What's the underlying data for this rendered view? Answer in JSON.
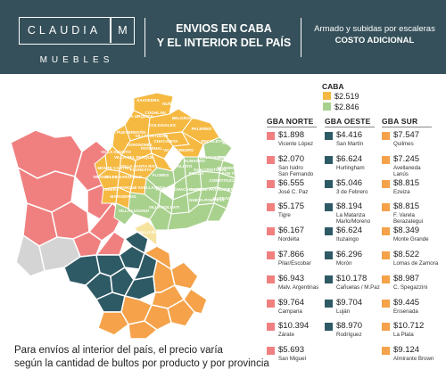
{
  "header": {
    "logo_name": "CLAUDIA",
    "logo_letter": "M",
    "logo_sub": "MUEBLES",
    "title_line1": "ENVIOS EN CABA",
    "title_line2": "Y EL INTERIOR DEL PAÍS",
    "right_line1": "Armado y subidas por escaleras",
    "right_line2": "COSTO ADICIONAL"
  },
  "colors": {
    "header_bg": "#35505a",
    "gba_norte": "#f08080",
    "gba_oeste": "#2e5a66",
    "gba_sur": "#f5a24a",
    "caba_yellow": "#f5b942",
    "caba_green": "#a9d18e"
  },
  "caba": {
    "label": "CABA",
    "prices": [
      "$2.519",
      "$2.846"
    ]
  },
  "columns": [
    {
      "name": "GBA NORTE",
      "color": "#f08080",
      "items": [
        {
          "price": "$1.898",
          "place": "Vicente López"
        },
        {
          "price": "$2.070",
          "place": "San Isidro\nSan Fernando"
        },
        {
          "price": "$6.555",
          "place": "José C. Paz"
        },
        {
          "price": "$5.175",
          "place": "Tigre"
        },
        {
          "price": "$6.167",
          "place": "Nordelta"
        },
        {
          "price": "$7.866",
          "place": "Pilar/Escobar"
        },
        {
          "price": "$6.943",
          "place": "Malv. Argentinas"
        },
        {
          "price": "$9.764",
          "place": "Campana"
        },
        {
          "price": "$10.394",
          "place": "Zárate"
        },
        {
          "price": "$5.693",
          "place": "San Miguel"
        }
      ]
    },
    {
      "name": "GBA OESTE",
      "color": "#2e5a66",
      "items": [
        {
          "price": "$4.416",
          "place": "San Martín"
        },
        {
          "price": "$6.624",
          "place": "Hurlingham"
        },
        {
          "price": "$5.046",
          "place": "3 de Febrero"
        },
        {
          "price": "$8.194",
          "place": "La Matanza\nMarlo/Moreno"
        },
        {
          "price": "$6.624",
          "place": "Ituzaingo"
        },
        {
          "price": "$6.296",
          "place": "Morón"
        },
        {
          "price": "$10.178",
          "place": "Cañuelas / M.Paz"
        },
        {
          "price": "$9.704",
          "place": "Luján"
        },
        {
          "price": "$8.970",
          "place": "Rodríguez"
        }
      ]
    },
    {
      "name": "GBA SUR",
      "color": "#f5a24a",
      "items": [
        {
          "price": "$7.547",
          "place": "Quilmes"
        },
        {
          "price": "$7.245",
          "place": "Avellaneda\nLanús"
        },
        {
          "price": "$8.815",
          "place": "Ezeiza"
        },
        {
          "price": "$8.815",
          "place": "F. Varela\nBerazategui"
        },
        {
          "price": "$8.349",
          "place": "Monte Grande"
        },
        {
          "price": "$8.522",
          "place": "Lomas de Zamora"
        },
        {
          "price": "$8.987",
          "place": "C. Spegazzini"
        },
        {
          "price": "$9.445",
          "place": "Ensenada"
        },
        {
          "price": "$10.712",
          "place": "La Plata"
        },
        {
          "price": "$9.124",
          "place": "Almirante Brown"
        }
      ]
    }
  ],
  "map_labels": [
    "SAAVEDRA",
    "NUÑEZ",
    "VILLA URQUIZA",
    "COGHLAN",
    "BELGRANO",
    "VILLA PUEYRREDÓN",
    "COLEGIALES",
    "PALERMO",
    "VILLA ORTÚZAR",
    "CHACARITA",
    "RECOLETA",
    "RETIRO",
    "AGRONOMÍA",
    "VILLA DEVOTO",
    "PATERNAL",
    "VILLA CRESPO",
    "BALVANERA",
    "SAN NICOLAS",
    "VILLA DEL PARQUE",
    "VILLA SANTA RITA",
    "CABALLITO",
    "ALMAGRO",
    "MONSERRAT",
    "MONTE CASTRO",
    "FLORESTA",
    "FLORES",
    "BOEDO",
    "SAN CRISTOBAL",
    "CONSTITUCIÓN",
    "VERSALLES",
    "VELEZ SARSFIELD",
    "SAN TELMO",
    "LINIERS",
    "PARQUE AVELLANEDA",
    "PARQUE CHACABUCO",
    "PARQUE PATRICIOS",
    "BARRACAS",
    "LA BOCA",
    "MATADEROS",
    "VILLA LUGANO",
    "VILLA SOLDATI",
    "NUEVA POMPEYA",
    "VILLA RIACHUELO"
  ],
  "footer": {
    "line1": "Para envíos al interior del país, el precio varía",
    "line2": "según la cantidad de bultos por producto y por provincia"
  }
}
